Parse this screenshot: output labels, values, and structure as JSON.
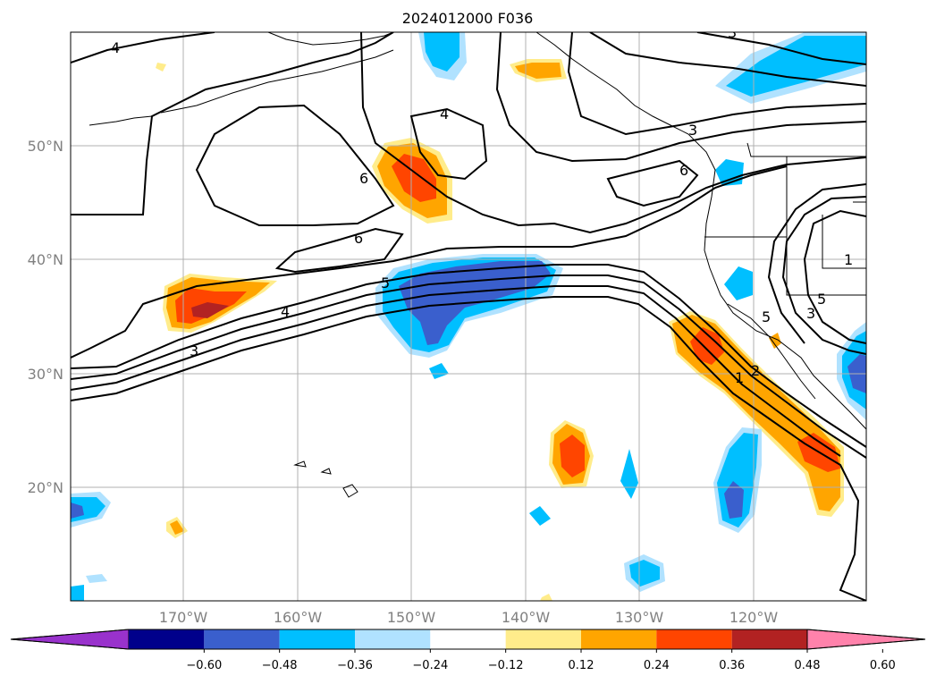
{
  "title": "2024012000 F036",
  "map": {
    "lat_labels": [
      "50°N",
      "40°N",
      "30°N",
      "20°N"
    ],
    "lon_labels": [
      "170°W",
      "160°W",
      "150°W",
      "140°W",
      "130°W",
      "120°W"
    ],
    "contour_labels": [
      "4",
      "4",
      "6",
      "6",
      "3",
      "6",
      "5",
      "4",
      "3",
      "1",
      "2",
      "5",
      "3",
      "5",
      "1",
      "3"
    ]
  },
  "colorbar": {
    "ticks": [
      "−0.60",
      "−0.48",
      "−0.36",
      "−0.24",
      "−0.12",
      "0.12",
      "0.24",
      "0.36",
      "0.48",
      "0.60"
    ],
    "colors": [
      "#9932cc",
      "#00008b",
      "#3a5fcd",
      "#00bfff",
      "#b0e2ff",
      "#ffffff",
      "#ffec8b",
      "#ffa500",
      "#ff4500",
      "#b22222",
      "#ff82ab"
    ]
  }
}
